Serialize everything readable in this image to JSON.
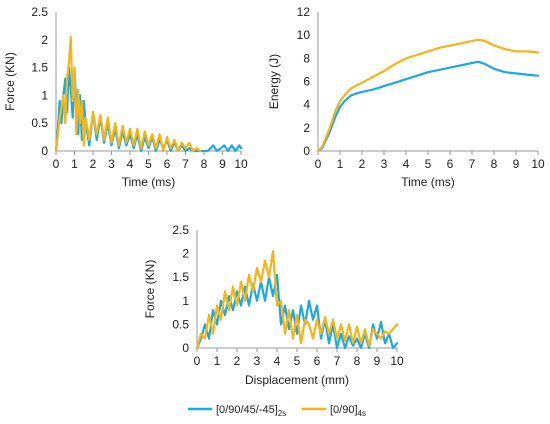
{
  "colors": {
    "series_a": "#1fa8de",
    "series_b": "#f2b51a",
    "axis": "#9a9a9a"
  },
  "legend": {
    "position": "bottom",
    "items": [
      {
        "main": "[0/90/45/-45]",
        "sub": "2s"
      },
      {
        "main": "[0/90]",
        "sub": "4s"
      }
    ]
  },
  "chart_data": [
    {
      "type": "line",
      "xlabel": "Time (ms)",
      "ylabel": "Force (KN)",
      "xlim": [
        0,
        10
      ],
      "ylim": [
        0,
        2.5
      ],
      "xticks": [
        "0",
        "1",
        "2",
        "3",
        "4",
        "5",
        "6",
        "7",
        "8",
        "9",
        "10"
      ],
      "yticks": [
        "0",
        "0.5",
        "1",
        "1.5",
        "2",
        "2.5"
      ],
      "series": [
        {
          "x": [
            0,
            0.1,
            0.2,
            0.3,
            0.4,
            0.5,
            0.6,
            0.7,
            0.8,
            0.9,
            1.0,
            1.1,
            1.2,
            1.3,
            1.4,
            1.5,
            1.6,
            1.8,
            2.0,
            2.2,
            2.4,
            2.6,
            2.8,
            3.0,
            3.2,
            3.4,
            3.6,
            3.8,
            4.0,
            4.2,
            4.4,
            4.6,
            4.8,
            5.0,
            5.2,
            5.4,
            5.6,
            5.8,
            6.0,
            6.2,
            6.4,
            6.6,
            6.8,
            7.0,
            7.2,
            7.4,
            7.6,
            7.9,
            8.2,
            8.5,
            8.7,
            8.9,
            9.1,
            9.3,
            9.5,
            9.7,
            9.9,
            10.0
          ],
          "y": [
            0,
            0.4,
            0.9,
            0.5,
            1.0,
            1.3,
            0.7,
            1.5,
            1.1,
            0.6,
            1.45,
            0.9,
            0.3,
            1.0,
            0.2,
            0.9,
            0.5,
            0.1,
            0.7,
            0.2,
            0.6,
            0.15,
            0.5,
            0.1,
            0.4,
            0.05,
            0.35,
            0.1,
            0.3,
            0.05,
            0.3,
            0.0,
            0.25,
            0.05,
            0.25,
            0.0,
            0.2,
            0.05,
            0.2,
            0.0,
            0.15,
            0.0,
            0.1,
            0.0,
            0.05,
            0.0,
            0.0,
            0.0,
            0.0,
            0.1,
            0.0,
            0.05,
            0.1,
            0.0,
            0.1,
            0.0,
            0.1,
            0.05
          ]
        },
        {
          "x": [
            0,
            0.1,
            0.2,
            0.3,
            0.4,
            0.5,
            0.6,
            0.7,
            0.8,
            0.9,
            1.0,
            1.1,
            1.2,
            1.3,
            1.4,
            1.5,
            1.6,
            1.8,
            2.0,
            2.2,
            2.4,
            2.6,
            2.8,
            3.0,
            3.2,
            3.4,
            3.6,
            3.8,
            4.0,
            4.2,
            4.4,
            4.6,
            4.8,
            5.0,
            5.2,
            5.4,
            5.6,
            5.8,
            6.0,
            6.2,
            6.4,
            6.6,
            6.8,
            7.0,
            7.2,
            7.4,
            7.6,
            7.8
          ],
          "y": [
            0,
            0.3,
            0.6,
            0.8,
            1.0,
            0.5,
            1.3,
            1.6,
            2.05,
            0.9,
            1.5,
            0.3,
            1.1,
            0.5,
            0.9,
            0.1,
            0.6,
            0.2,
            0.7,
            0.3,
            0.65,
            0.2,
            0.6,
            0.15,
            0.5,
            0.1,
            0.45,
            0.15,
            0.4,
            0.1,
            0.4,
            0.05,
            0.35,
            0.1,
            0.3,
            0.05,
            0.3,
            0.0,
            0.25,
            0.05,
            0.2,
            0.0,
            0.15,
            0.05,
            0.15,
            0.0,
            0.05,
            0.0
          ]
        }
      ]
    },
    {
      "type": "line",
      "xlabel": "Time (ms)",
      "ylabel": "Energy (J)",
      "xlim": [
        0,
        10
      ],
      "ylim": [
        0,
        12
      ],
      "xticks": [
        "0",
        "1",
        "2",
        "3",
        "4",
        "5",
        "6",
        "7",
        "8",
        "9",
        "10"
      ],
      "yticks": [
        "0",
        "2",
        "4",
        "6",
        "8",
        "10",
        "12"
      ],
      "series": [
        {
          "x": [
            0,
            0.2,
            0.5,
            0.8,
            1.0,
            1.2,
            1.5,
            1.8,
            2.0,
            2.5,
            3.0,
            3.5,
            4.0,
            4.5,
            5.0,
            5.5,
            6.0,
            6.5,
            7.0,
            7.3,
            7.6,
            8.0,
            8.5,
            9.0,
            9.5,
            10.0
          ],
          "y": [
            0,
            0.3,
            1.5,
            3.0,
            3.8,
            4.3,
            4.8,
            5.0,
            5.1,
            5.3,
            5.6,
            5.9,
            6.2,
            6.5,
            6.8,
            7.0,
            7.2,
            7.4,
            7.6,
            7.7,
            7.5,
            7.1,
            6.8,
            6.7,
            6.6,
            6.5
          ]
        },
        {
          "x": [
            0,
            0.2,
            0.5,
            0.8,
            1.0,
            1.2,
            1.5,
            1.8,
            2.0,
            2.5,
            3.0,
            3.5,
            4.0,
            4.5,
            5.0,
            5.5,
            6.0,
            6.5,
            7.0,
            7.3,
            7.6,
            8.0,
            8.5,
            9.0,
            9.5,
            10.0
          ],
          "y": [
            0,
            0.4,
            1.8,
            3.5,
            4.3,
            4.8,
            5.4,
            5.7,
            5.9,
            6.4,
            6.9,
            7.5,
            8.0,
            8.3,
            8.6,
            8.9,
            9.1,
            9.3,
            9.5,
            9.6,
            9.5,
            9.1,
            8.8,
            8.6,
            8.6,
            8.5
          ]
        }
      ]
    },
    {
      "type": "line",
      "xlabel": "Displacement (mm)",
      "ylabel": "Force (KN)",
      "xlim": [
        0,
        10
      ],
      "ylim": [
        0,
        2.5
      ],
      "xticks": [
        "0",
        "1",
        "2",
        "3",
        "4",
        "5",
        "6",
        "7",
        "8",
        "9",
        "10"
      ],
      "yticks": [
        "0",
        "0.5",
        "1",
        "1.5",
        "2",
        "2.5"
      ],
      "series": [
        {
          "x": [
            0,
            0.2,
            0.4,
            0.6,
            0.8,
            1.0,
            1.2,
            1.4,
            1.6,
            1.8,
            2.0,
            2.2,
            2.4,
            2.6,
            2.8,
            3.0,
            3.2,
            3.4,
            3.6,
            3.8,
            4.0,
            4.2,
            4.4,
            4.6,
            4.8,
            5.0,
            5.2,
            5.4,
            5.6,
            5.8,
            6.0,
            6.2,
            6.4,
            6.6,
            6.8,
            7.0,
            7.2,
            7.4,
            7.6,
            7.8,
            8.0,
            8.2,
            8.4,
            8.6,
            8.8,
            9.0,
            9.2,
            9.4,
            9.6,
            9.8,
            10.0
          ],
          "y": [
            0,
            0.2,
            0.5,
            0.2,
            0.8,
            0.5,
            1.0,
            0.7,
            1.1,
            0.8,
            1.2,
            0.9,
            1.3,
            0.9,
            1.35,
            1.0,
            1.4,
            1.0,
            1.5,
            1.1,
            1.55,
            0.5,
            0.9,
            0.4,
            0.8,
            0.3,
            0.9,
            0.5,
            1.0,
            0.6,
            0.9,
            0.2,
            0.6,
            0.1,
            0.5,
            0.0,
            0.3,
            0.0,
            0.25,
            0.05,
            0.2,
            0.0,
            0.3,
            0.0,
            0.5,
            0.2,
            0.55,
            0.1,
            0.3,
            0.0,
            0.1
          ]
        },
        {
          "x": [
            0,
            0.2,
            0.4,
            0.6,
            0.8,
            1.0,
            1.2,
            1.4,
            1.6,
            1.8,
            2.0,
            2.2,
            2.4,
            2.6,
            2.8,
            3.0,
            3.2,
            3.4,
            3.6,
            3.8,
            4.0,
            4.2,
            4.4,
            4.6,
            4.8,
            5.0,
            5.2,
            5.4,
            5.6,
            5.8,
            6.0,
            6.2,
            6.4,
            6.6,
            6.8,
            7.0,
            7.2,
            7.4,
            7.6,
            7.8,
            8.0,
            8.2,
            8.4,
            8.6,
            8.8,
            9.0,
            9.2,
            9.4,
            9.6,
            9.8,
            10.0
          ],
          "y": [
            0,
            0.3,
            0.2,
            0.7,
            0.3,
            0.9,
            0.6,
            1.2,
            0.8,
            1.3,
            0.9,
            1.4,
            1.0,
            1.55,
            1.2,
            1.7,
            1.4,
            1.85,
            1.5,
            2.05,
            0.9,
            1.0,
            0.3,
            0.8,
            0.2,
            0.7,
            0.1,
            0.6,
            0.5,
            0.2,
            0.6,
            0.3,
            0.65,
            0.3,
            0.6,
            0.2,
            0.5,
            0.15,
            0.5,
            0.1,
            0.45,
            0.1,
            0.4,
            0.05,
            0.4,
            0.3,
            0.2,
            0.35,
            0.3,
            0.4,
            0.5
          ]
        }
      ]
    }
  ]
}
